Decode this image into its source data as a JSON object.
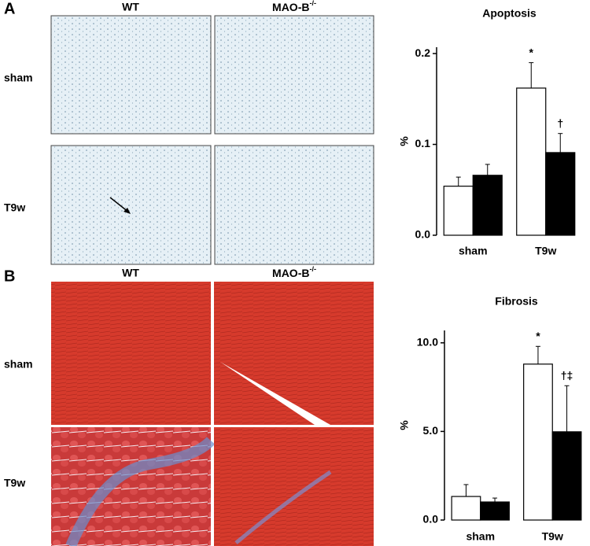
{
  "panels": [
    {
      "label": "A",
      "columns": [
        {
          "name": "WT"
        },
        {
          "name": "MAO-B",
          "sup": "-/-"
        }
      ],
      "rows": [
        "sham",
        "T9w"
      ]
    },
    {
      "label": "B",
      "columns": [
        {
          "name": "WT"
        },
        {
          "name": "MAO-B",
          "sup": "-/-"
        }
      ],
      "rows": [
        "sham",
        "T9w"
      ]
    }
  ],
  "chart_data": [
    {
      "type": "bar",
      "title": "Apoptosis",
      "ylabel": "%",
      "categories": [
        "sham",
        "T9w"
      ],
      "series": [
        {
          "color": "#ffffff",
          "values": [
            0.054,
            0.162
          ],
          "errors": [
            0.01,
            0.028
          ],
          "labels": [
            null,
            "*"
          ]
        },
        {
          "color": "#000000",
          "values": [
            0.066,
            0.091
          ],
          "errors": [
            0.012,
            0.021
          ],
          "labels": [
            null,
            "†"
          ]
        }
      ],
      "ylim": [
        0,
        0.207
      ],
      "yticks": [
        {
          "value": 0,
          "label": "0.0"
        },
        0.1,
        0.2
      ]
    },
    {
      "type": "bar",
      "title": "Fibrosis",
      "ylabel": "%",
      "categories": [
        "sham",
        "T9w"
      ],
      "series": [
        {
          "color": "#ffffff",
          "values": [
            1.33,
            8.8
          ],
          "errors": [
            0.67,
            1.0
          ],
          "labels": [
            null,
            "*"
          ]
        },
        {
          "color": "#000000",
          "values": [
            1.02,
            4.98
          ],
          "errors": [
            0.22,
            2.6
          ],
          "labels": [
            null,
            "†‡"
          ]
        }
      ],
      "ylim": [
        0,
        10.7
      ],
      "yticks": [
        {
          "value": 0,
          "label": "0.0"
        },
        {
          "value": 5,
          "label": "5.0"
        },
        {
          "value": 10,
          "label": "10.0"
        }
      ]
    }
  ]
}
